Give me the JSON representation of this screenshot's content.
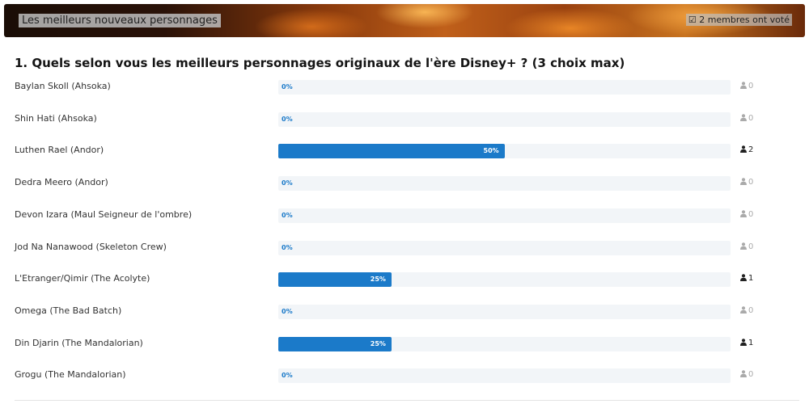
{
  "header": {
    "title": "Les meilleurs nouveaux personnages",
    "votes": "2 membres ont voté"
  },
  "poll": {
    "question": "1. Quels selon vous les meilleurs personnages originaux de l'ère Disney+ ? (3 choix max)",
    "options": [
      {
        "label": "Baylan Skoll (Ahsoka)",
        "percent": 0,
        "percent_label": "0%",
        "count": 0
      },
      {
        "label": "Shin Hati (Ahsoka)",
        "percent": 0,
        "percent_label": "0%",
        "count": 0
      },
      {
        "label": "Luthen Rael (Andor)",
        "percent": 50,
        "percent_label": "50%",
        "count": 2
      },
      {
        "label": "Dedra Meero (Andor)",
        "percent": 0,
        "percent_label": "0%",
        "count": 0
      },
      {
        "label": "Devon Izara (Maul Seigneur de l'ombre)",
        "percent": 0,
        "percent_label": "0%",
        "count": 0
      },
      {
        "label": "Jod Na Nanawood (Skeleton Crew)",
        "percent": 0,
        "percent_label": "0%",
        "count": 0
      },
      {
        "label": "L'Etranger/Qimir (The Acolyte)",
        "percent": 25,
        "percent_label": "25%",
        "count": 1
      },
      {
        "label": "Omega (The Bad Batch)",
        "percent": 0,
        "percent_label": "0%",
        "count": 0
      },
      {
        "label": "Din Djarin (The Mandalorian)",
        "percent": 25,
        "percent_label": "25%",
        "count": 1
      },
      {
        "label": "Grogu (The Mandalorian)",
        "percent": 0,
        "percent_label": "0%",
        "count": 0
      }
    ]
  }
}
